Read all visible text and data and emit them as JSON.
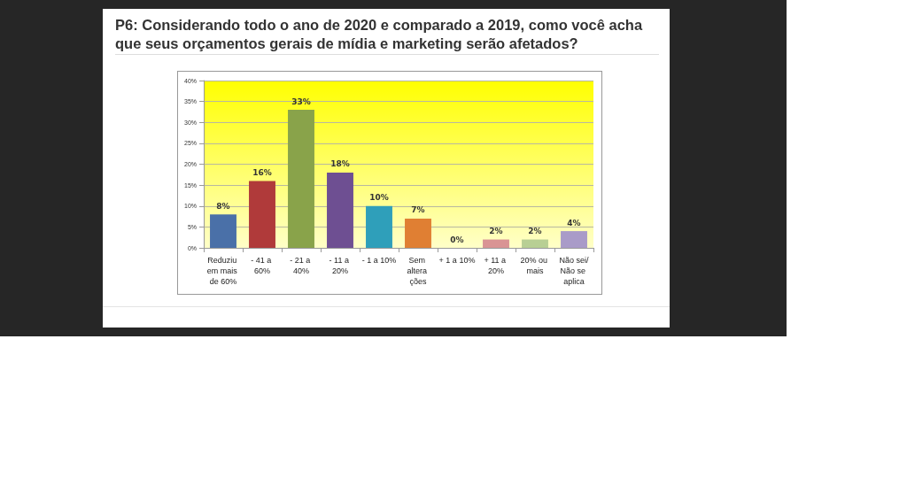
{
  "chart_data": {
    "type": "bar",
    "title": "P6: Considerando todo o ano de 2020 e comparado a 2019, como você acha que seus orçamentos gerais de mídia e marketing serão afetados?",
    "categories": [
      "Reduziu em mais de 60%",
      "- 41 a 60%",
      "- 21 a 40%",
      "- 11 a 20%",
      "- 1 a 10%",
      "Sem altera ções",
      "+ 1 a 10%",
      "+ 11 a 20%",
      "20% ou mais",
      "Não sei/Não se aplica"
    ],
    "values": [
      8,
      16,
      33,
      18,
      10,
      7,
      0,
      2,
      2,
      4
    ],
    "value_labels": [
      "8%",
      "16%",
      "33%",
      "18%",
      "10%",
      "7%",
      "0%",
      "2%",
      "2%",
      "4%"
    ],
    "colors": [
      "#4a70a8",
      "#b03a3a",
      "#89a34a",
      "#6e4f92",
      "#2f9fba",
      "#e07f33",
      "#8ab0d8",
      "#d99494",
      "#b8cf94",
      "#a99bc8"
    ],
    "ylim": [
      0,
      40
    ],
    "yticks": [
      {
        "value": 0,
        "label": "0%"
      },
      {
        "value": 5,
        "label": "5%"
      },
      {
        "value": 10,
        "label": "10%"
      },
      {
        "value": 15,
        "label": "15%"
      },
      {
        "value": 20,
        "label": "20%"
      },
      {
        "value": 25,
        "label": "25%"
      },
      {
        "value": 30,
        "label": "30%"
      },
      {
        "value": 35,
        "label": "35%"
      },
      {
        "value": 40,
        "label": "40%"
      }
    ],
    "grid": "y"
  }
}
